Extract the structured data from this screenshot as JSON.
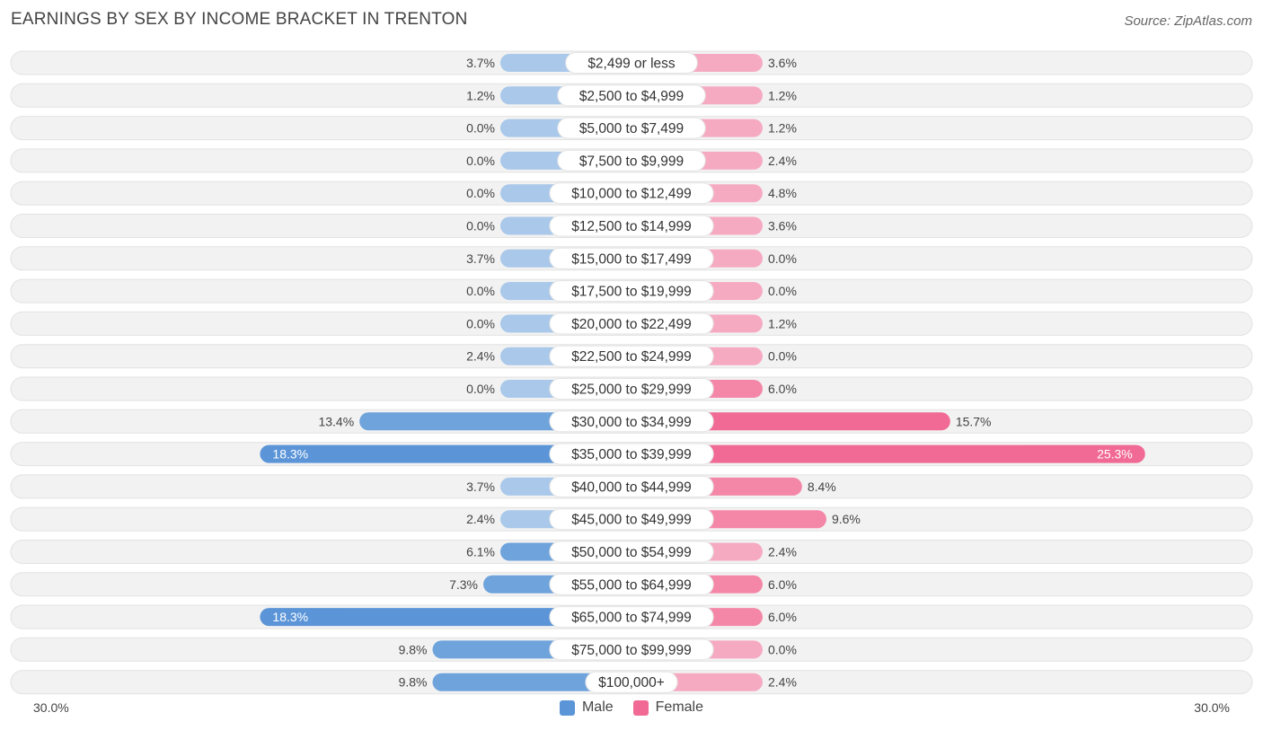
{
  "header": {
    "title": "EARNINGS BY SEX BY INCOME BRACKET IN TRENTON",
    "source": "Source: ZipAtlas.com"
  },
  "axis": {
    "left_label": "30.0%",
    "right_label": "30.0%"
  },
  "legend": {
    "male_label": "Male",
    "female_label": "Female"
  },
  "colors": {
    "male": "#6fa3dc",
    "male_strong": "#5b95d8",
    "male_light": "#a9c8ea",
    "female": "#f487a8",
    "female_strong": "#f06a95",
    "female_light": "#f6aac2",
    "row_bg": "#f1f1f1"
  },
  "chart_data": {
    "type": "bar",
    "title": "EARNINGS BY SEX BY INCOME BRACKET IN TRENTON",
    "orientation": "horizontal-diverging",
    "xlim": [
      -30,
      30
    ],
    "categories": [
      "$2,499 or less",
      "$2,500 to $4,999",
      "$5,000 to $7,499",
      "$7,500 to $9,999",
      "$10,000 to $12,499",
      "$12,500 to $14,999",
      "$15,000 to $17,499",
      "$17,500 to $19,999",
      "$20,000 to $22,499",
      "$22,500 to $24,999",
      "$25,000 to $29,999",
      "$30,000 to $34,999",
      "$35,000 to $39,999",
      "$40,000 to $44,999",
      "$45,000 to $49,999",
      "$50,000 to $54,999",
      "$55,000 to $64,999",
      "$65,000 to $74,999",
      "$75,000 to $99,999",
      "$100,000+"
    ],
    "series": [
      {
        "name": "Male",
        "values": [
          3.7,
          1.2,
          0.0,
          0.0,
          0.0,
          0.0,
          3.7,
          0.0,
          0.0,
          2.4,
          0.0,
          13.4,
          18.3,
          3.7,
          2.4,
          6.1,
          7.3,
          18.3,
          9.8,
          9.8
        ],
        "labels": [
          "3.7%",
          "1.2%",
          "0.0%",
          "0.0%",
          "0.0%",
          "0.0%",
          "3.7%",
          "0.0%",
          "0.0%",
          "2.4%",
          "0.0%",
          "13.4%",
          "18.3%",
          "3.7%",
          "2.4%",
          "6.1%",
          "7.3%",
          "18.3%",
          "9.8%",
          "9.8%"
        ]
      },
      {
        "name": "Female",
        "values": [
          3.6,
          1.2,
          1.2,
          2.4,
          4.8,
          3.6,
          0.0,
          0.0,
          1.2,
          0.0,
          6.0,
          15.7,
          25.3,
          8.4,
          9.6,
          2.4,
          6.0,
          6.0,
          0.0,
          2.4
        ],
        "labels": [
          "3.6%",
          "1.2%",
          "1.2%",
          "2.4%",
          "4.8%",
          "3.6%",
          "0.0%",
          "0.0%",
          "1.2%",
          "0.0%",
          "6.0%",
          "15.7%",
          "25.3%",
          "8.4%",
          "9.6%",
          "2.4%",
          "6.0%",
          "6.0%",
          "0.0%",
          "2.4%"
        ]
      }
    ]
  }
}
